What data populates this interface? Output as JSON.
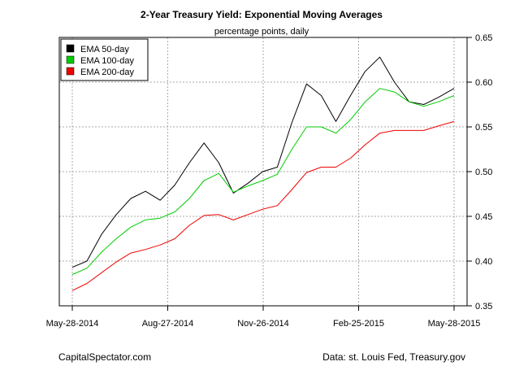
{
  "chart_data": {
    "type": "line",
    "title": "2-Year Treasury Yield: Exponential Moving Averages",
    "subtitle": "percentage points, daily",
    "xlabel": "",
    "ylabel": "",
    "x_tick_labels": [
      "May-28-2014",
      "Aug-27-2014",
      "Nov-26-2014",
      "Feb-25-2015",
      "May-28-2015"
    ],
    "ylim": [
      0.35,
      0.65
    ],
    "y_ticks": [
      "0.35",
      "0.40",
      "0.45",
      "0.50",
      "0.55",
      "0.60",
      "0.65"
    ],
    "y_axis_side": "right",
    "grid": true,
    "legend_position": "top-left",
    "x": [
      "2014-05-28",
      "2014-06-11",
      "2014-06-25",
      "2014-07-09",
      "2014-07-23",
      "2014-08-06",
      "2014-08-20",
      "2014-09-03",
      "2014-09-17",
      "2014-10-01",
      "2014-10-15",
      "2014-10-29",
      "2014-11-12",
      "2014-11-26",
      "2014-12-10",
      "2014-12-24",
      "2015-01-07",
      "2015-01-21",
      "2015-02-04",
      "2015-02-18",
      "2015-03-04",
      "2015-03-18",
      "2015-04-01",
      "2015-04-15",
      "2015-04-29",
      "2015-05-13",
      "2015-05-28"
    ],
    "series": [
      {
        "name": "EMA 50-day",
        "color": "#000000",
        "values": [
          0.393,
          0.4,
          0.43,
          0.452,
          0.47,
          0.478,
          0.468,
          0.485,
          0.51,
          0.532,
          0.51,
          0.476,
          0.487,
          0.5,
          0.505,
          0.555,
          0.598,
          0.585,
          0.556,
          0.585,
          0.612,
          0.628,
          0.6,
          0.578,
          0.575,
          0.583,
          0.593
        ]
      },
      {
        "name": "EMA 100-day",
        "color": "#00cc00",
        "values": [
          0.385,
          0.392,
          0.41,
          0.425,
          0.438,
          0.446,
          0.448,
          0.455,
          0.47,
          0.49,
          0.498,
          0.477,
          0.484,
          0.49,
          0.497,
          0.525,
          0.55,
          0.55,
          0.543,
          0.558,
          0.578,
          0.593,
          0.589,
          0.578,
          0.573,
          0.578,
          0.585
        ]
      },
      {
        "name": "EMA 200-day",
        "color": "#ee0000",
        "values": [
          0.367,
          0.375,
          0.387,
          0.399,
          0.409,
          0.413,
          0.418,
          0.425,
          0.44,
          0.451,
          0.452,
          0.446,
          0.452,
          0.458,
          0.462,
          0.48,
          0.499,
          0.505,
          0.505,
          0.515,
          0.53,
          0.543,
          0.546,
          0.546,
          0.546,
          0.551,
          0.556
        ]
      }
    ]
  },
  "footer": {
    "left": "CapitalSpectator.com",
    "right": "Data: st. Louis Fed, Treasury.gov"
  }
}
